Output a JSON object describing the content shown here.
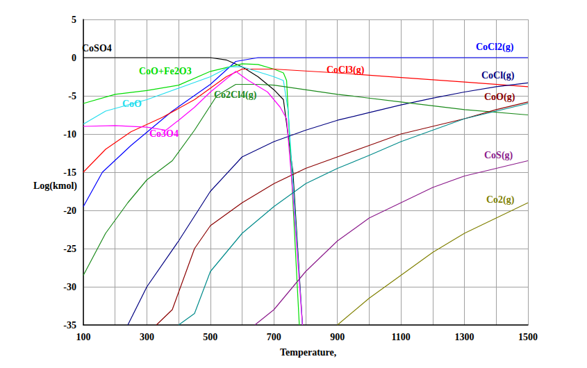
{
  "chart_data": {
    "type": "line",
    "xlabel": "Temperature,",
    "ylabel": "Log(kmol)",
    "xlim": [
      100,
      1500
    ],
    "xticks": [
      100,
      300,
      500,
      700,
      900,
      1100,
      1300,
      1500
    ],
    "ylim": [
      -35,
      5
    ],
    "yticks": [
      -35,
      -30,
      -25,
      -20,
      -15,
      -10,
      -5,
      0,
      5
    ],
    "grid": true,
    "series": [
      {
        "name": "CoSO4",
        "color": "#000000",
        "x": [
          100,
          300,
          500,
          550,
          600,
          650,
          700,
          730,
          760,
          790
        ],
        "values": [
          0,
          0,
          0,
          -0.3,
          -1.2,
          -2.5,
          -4.2,
          -5.5,
          -15,
          -35
        ]
      },
      {
        "name": "CoCl2(g)",
        "color": "#0000ff",
        "x": [
          100,
          160,
          250,
          380,
          500,
          580,
          650,
          800,
          1000,
          1200,
          1500
        ],
        "values": [
          -19.5,
          -15,
          -11.5,
          -7,
          -3.5,
          -0.5,
          0,
          0,
          0,
          0,
          0
        ]
      },
      {
        "name": "CoO+Fe2O3",
        "color": "#00dd00",
        "x": [
          100,
          200,
          300,
          400,
          500,
          600,
          650,
          700,
          730,
          740,
          780
        ],
        "values": [
          -6,
          -4.8,
          -4.3,
          -3.6,
          -1.8,
          -0.8,
          -0.9,
          -1.5,
          -2,
          -3,
          -35
        ]
      },
      {
        "name": "CoCl3(g)",
        "color": "#ff0000",
        "x": [
          100,
          170,
          250,
          350,
          450,
          550,
          600,
          700,
          900,
          1100,
          1300,
          1500
        ],
        "values": [
          -15,
          -12,
          -9.7,
          -7.8,
          -5.5,
          -2.5,
          -1.5,
          -1.5,
          -2,
          -2.6,
          -3.2,
          -3.8
        ]
      },
      {
        "name": "CoO",
        "color": "#22ddee",
        "x": [
          100,
          170,
          300,
          400,
          500,
          560,
          600,
          700,
          730,
          745,
          790
        ],
        "values": [
          -8.7,
          -7,
          -5.5,
          -4,
          -2.5,
          -1.2,
          -1.2,
          -2.5,
          -3,
          -7,
          -35
        ]
      },
      {
        "name": "CoCl(g)",
        "color": "#000080",
        "x": [
          240,
          300,
          400,
          500,
          600,
          700,
          800,
          900,
          1000,
          1100,
          1200,
          1300,
          1400,
          1500
        ],
        "values": [
          -35,
          -30,
          -24,
          -17.5,
          -13,
          -11,
          -9.5,
          -8.2,
          -7.2,
          -6.2,
          -5.3,
          -4.5,
          -3.8,
          -3.3
        ]
      },
      {
        "name": "Co2Cl4(g)",
        "color": "#1b8a1b",
        "x": [
          100,
          170,
          240,
          300,
          380,
          450,
          520,
          580,
          650,
          700,
          900,
          1100,
          1300,
          1500
        ],
        "values": [
          -28.5,
          -23,
          -19,
          -16,
          -13.5,
          -9.5,
          -5,
          -3.5,
          -3.5,
          -3.6,
          -4.8,
          -5.8,
          -6.8,
          -7.5
        ]
      },
      {
        "name": "CoO(g)",
        "color": "#8b0000",
        "x": [
          330,
          380,
          450,
          500,
          600,
          700,
          800,
          900,
          1000,
          1100,
          1200,
          1300,
          1400,
          1500
        ],
        "values": [
          -35,
          -33,
          -25,
          -22,
          -19,
          -16.5,
          -14.5,
          -13,
          -11.5,
          -10,
          -9,
          -8,
          -6.8,
          -5.8
        ]
      },
      {
        "name": "Co3O4",
        "color": "#ff00ff",
        "x": [
          100,
          200,
          300,
          360,
          400,
          450,
          500,
          550,
          580,
          620,
          680,
          720,
          740,
          760,
          790
        ],
        "values": [
          -9,
          -8.9,
          -9.1,
          -9.5,
          -8.2,
          -6.5,
          -4.5,
          -2.8,
          -1.8,
          -3,
          -4.5,
          -6.5,
          -8,
          -18,
          -35
        ]
      },
      {
        "name": "CoS(g)",
        "color": "#8b1a8b",
        "x": [
          640,
          700,
          800,
          900,
          1000,
          1100,
          1200,
          1300,
          1400,
          1500
        ],
        "values": [
          -35,
          -33,
          -28,
          -24,
          -21,
          -19,
          -17,
          -15.5,
          -14.5,
          -13.5
        ]
      },
      {
        "name": "Co2(g)",
        "color": "#808000",
        "x": [
          900,
          1000,
          1100,
          1200,
          1300,
          1400,
          1500
        ],
        "values": [
          -35,
          -31.5,
          -28.5,
          -25.5,
          -23,
          -21,
          -19
        ]
      },
      {
        "color": "#008b8b",
        "x": [
          400,
          450,
          500,
          600,
          700,
          800,
          900,
          1000,
          1100,
          1200,
          1300,
          1400,
          1500
        ],
        "values": [
          -35,
          -33.5,
          -28,
          -23,
          -19.5,
          -16.5,
          -14.5,
          -12.8,
          -11,
          -9.5,
          -8,
          -7,
          -6
        ]
      }
    ]
  }
}
